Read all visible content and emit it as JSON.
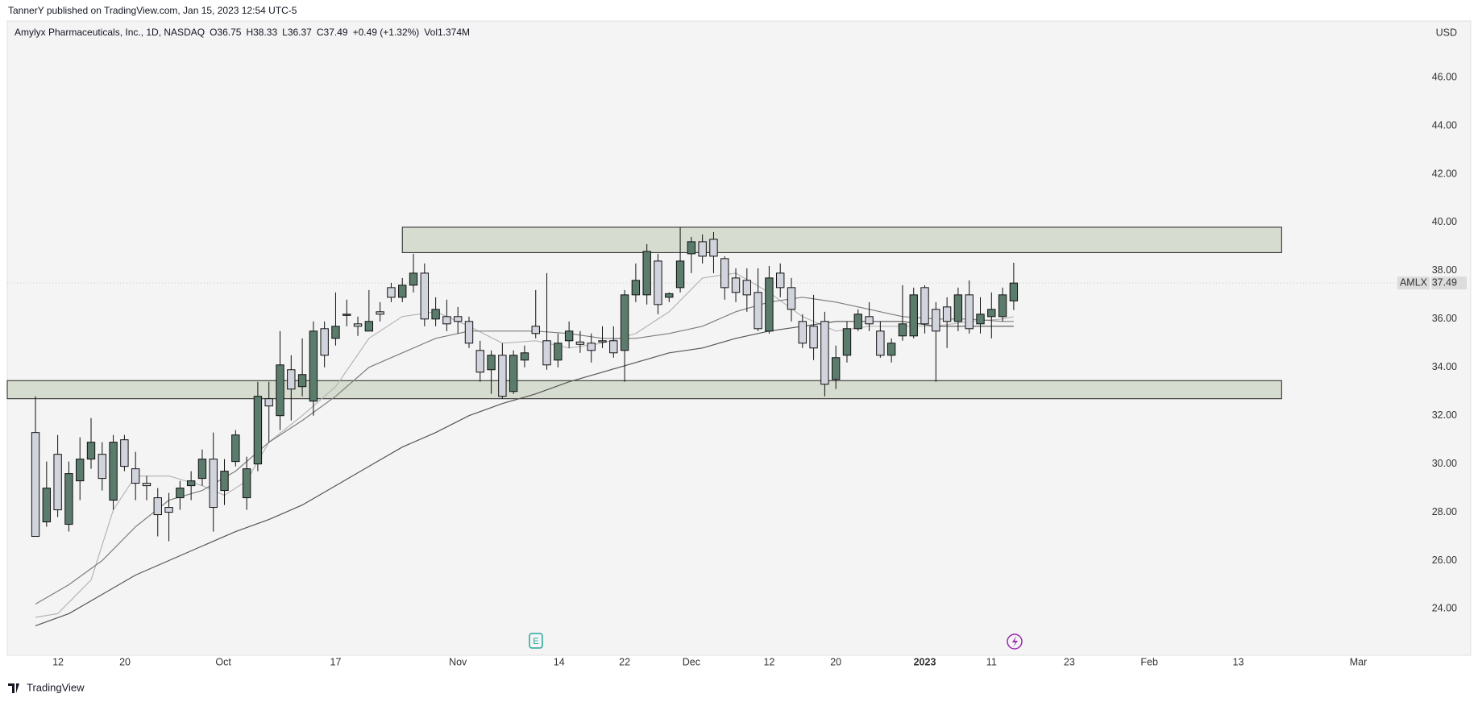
{
  "chart_data": {
    "type": "candlestick",
    "published": "TannerY published on TradingView.com, Jan 15, 2023 12:54 UTC-5",
    "symbol": "Amylyx Pharmaceuticals, Inc., 1D, NASDAQ",
    "ohlc_labels": [
      "O36.75",
      "H38.33",
      "L36.37",
      "C37.49"
    ],
    "change": "+0.49 (+1.32%)",
    "volume": "Vol1.374M",
    "currency": "USD",
    "brand": "TradingView",
    "up_color": "#5b7b6c",
    "down_color": "#d1d4dc",
    "open": [
      31.3,
      27.6,
      30.4,
      27.5,
      29.3,
      30.2,
      30.4,
      28.5,
      31.0,
      29.8,
      29.2,
      28.6,
      28.2,
      28.6,
      29.1,
      29.4,
      30.2,
      28.9,
      30.1,
      28.6,
      30.0,
      32.7,
      32.0,
      33.9,
      33.2,
      32.6,
      35.6,
      35.2,
      36.15,
      35.8,
      35.5,
      36.3,
      37.3,
      36.9,
      37.4,
      37.9,
      36.0,
      36.1,
      36.1,
      35.9,
      34.7,
      33.9,
      34.5,
      33.0,
      34.3,
      35.7,
      35.1,
      34.3,
      35.1,
      35.05,
      35.0,
      35.1,
      35.1,
      34.7,
      37.0,
      37.0,
      38.4,
      36.9,
      37.3,
      38.7,
      39.2,
      39.3,
      38.5,
      37.7,
      37.6,
      37.1,
      35.5,
      37.9,
      37.3,
      35.9,
      35.7,
      35.9,
      33.5,
      34.5,
      35.6,
      36.1,
      35.5,
      34.5,
      35.3,
      35.3,
      37.3,
      36.4,
      36.5,
      35.9,
      37.0,
      35.8,
      36.1,
      36.1,
      36.75
    ],
    "high": [
      32.8,
      30.1,
      31.2,
      30.1,
      31.1,
      31.9,
      30.9,
      31.2,
      31.2,
      30.5,
      29.5,
      29.0,
      28.8,
      29.3,
      29.7,
      30.6,
      31.3,
      30.2,
      31.4,
      30.3,
      33.4,
      33.4,
      35.5,
      34.5,
      35.2,
      35.9,
      35.9,
      37.1,
      36.8,
      36.1,
      37.2,
      36.7,
      37.5,
      37.7,
      38.7,
      38.3,
      36.9,
      36.8,
      36.5,
      36.1,
      35.1,
      34.7,
      35.0,
      34.7,
      34.9,
      37.2,
      37.9,
      35.4,
      35.9,
      35.5,
      35.4,
      35.7,
      35.7,
      37.2,
      38.3,
      39.1,
      38.7,
      37.1,
      39.8,
      39.4,
      39.5,
      39.6,
      38.6,
      38.1,
      38.1,
      38.1,
      38.2,
      38.3,
      37.7,
      36.2,
      37.0,
      36.3,
      34.9,
      35.9,
      36.4,
      36.7,
      35.9,
      35.2,
      37.4,
      37.3,
      37.4,
      36.7,
      36.9,
      37.3,
      37.6,
      36.9,
      37.1,
      37.3,
      38.33
    ],
    "low": [
      27.0,
      27.4,
      27.8,
      27.2,
      28.5,
      29.8,
      28.9,
      28.1,
      29.7,
      28.5,
      28.5,
      27.0,
      26.8,
      28.1,
      28.5,
      29.1,
      27.2,
      28.3,
      29.9,
      28.1,
      29.7,
      30.9,
      31.4,
      31.8,
      32.8,
      32.0,
      34.0,
      34.9,
      35.7,
      35.3,
      35.5,
      35.9,
      36.7,
      36.7,
      37.1,
      35.7,
      35.7,
      35.5,
      35.4,
      34.8,
      33.4,
      32.9,
      32.7,
      32.9,
      34.0,
      35.2,
      33.9,
      34.0,
      34.8,
      34.6,
      34.2,
      34.8,
      34.4,
      33.4,
      36.7,
      36.6,
      36.2,
      36.7,
      37.1,
      37.9,
      38.3,
      37.9,
      36.8,
      36.7,
      36.3,
      35.5,
      35.4,
      36.9,
      35.9,
      34.8,
      34.3,
      32.8,
      33.1,
      34.2,
      35.5,
      35.5,
      34.4,
      34.2,
      35.1,
      35.2,
      35.4,
      33.4,
      34.8,
      35.5,
      35.4,
      35.4,
      35.2,
      35.9,
      36.37
    ],
    "close": [
      27.0,
      29.0,
      28.1,
      29.6,
      30.2,
      30.9,
      29.4,
      30.9,
      29.9,
      29.2,
      29.1,
      27.9,
      28.0,
      29.0,
      29.3,
      30.2,
      28.2,
      29.7,
      31.2,
      29.8,
      32.8,
      32.4,
      34.1,
      33.1,
      33.7,
      35.5,
      34.5,
      35.7,
      36.2,
      35.7,
      35.9,
      36.2,
      36.9,
      37.4,
      37.9,
      36.0,
      36.4,
      35.8,
      35.9,
      35.0,
      33.8,
      34.5,
      32.8,
      34.5,
      34.6,
      35.4,
      34.1,
      35.0,
      35.5,
      34.95,
      34.7,
      35.05,
      34.6,
      37.0,
      37.6,
      38.8,
      36.6,
      37.05,
      38.4,
      39.2,
      38.6,
      38.6,
      37.3,
      37.1,
      37.0,
      35.6,
      37.7,
      37.3,
      36.4,
      35.0,
      34.8,
      33.3,
      34.4,
      35.6,
      36.2,
      35.8,
      34.5,
      35.0,
      35.8,
      37.0,
      35.8,
      35.5,
      35.9,
      37.0,
      35.6,
      36.2,
      36.4,
      37.0,
      37.49
    ],
    "series": [
      {
        "color": "#b5b5b5",
        "x": [
          0,
          2,
          5,
          7,
          9,
          12,
          15,
          17,
          19,
          21,
          24,
          27,
          30,
          33,
          36,
          39,
          42,
          45,
          48,
          51,
          54,
          57,
          60,
          63,
          66,
          69,
          72,
          75,
          78,
          81,
          84,
          87,
          88
        ],
        "values": [
          23.65,
          23.8,
          25.2,
          28.1,
          29.5,
          29.5,
          29.1,
          28.7,
          29.3,
          30.9,
          32.0,
          33.2,
          35.2,
          36.1,
          36.3,
          35.7,
          35.0,
          35.1,
          34.8,
          35.0,
          35.4,
          36.3,
          37.7,
          37.9,
          37.1,
          36.1,
          35.5,
          35.7,
          35.7,
          35.7,
          35.9,
          36.0,
          36.1
        ]
      },
      {
        "color": "#7d7d7d",
        "x": [
          0,
          3,
          6,
          9,
          12,
          15,
          18,
          21,
          24,
          27,
          30,
          33,
          36,
          39,
          42,
          45,
          48,
          51,
          54,
          57,
          60,
          63,
          66,
          69,
          72,
          75,
          78,
          81,
          84,
          87,
          88
        ],
        "values": [
          24.2,
          25.0,
          26.0,
          27.4,
          28.5,
          28.9,
          29.7,
          30.9,
          31.8,
          32.8,
          34.0,
          34.6,
          35.2,
          35.5,
          35.5,
          35.5,
          35.4,
          35.2,
          35.2,
          35.4,
          35.7,
          36.3,
          36.7,
          36.9,
          36.7,
          36.4,
          36.1,
          36.0,
          36.0,
          35.9,
          35.9
        ]
      },
      {
        "color": "#555555",
        "x": [
          0,
          3,
          6,
          9,
          12,
          15,
          18,
          21,
          24,
          27,
          30,
          33,
          36,
          39,
          42,
          45,
          48,
          51,
          54,
          57,
          60,
          63,
          66,
          69,
          72,
          75,
          78,
          81,
          84,
          87,
          88
        ],
        "values": [
          23.3,
          23.8,
          24.6,
          25.4,
          26.0,
          26.6,
          27.2,
          27.7,
          28.3,
          29.1,
          29.9,
          30.7,
          31.3,
          32.0,
          32.5,
          32.9,
          33.4,
          33.8,
          34.2,
          34.6,
          34.8,
          35.2,
          35.5,
          35.7,
          35.9,
          35.9,
          35.9,
          35.7,
          35.7,
          35.7,
          35.7
        ]
      }
    ],
    "zones": [
      {
        "x0": 33.0,
        "x1": 112.1,
        "y0": 38.75,
        "y1": 39.8
      },
      {
        "x0": -2.54,
        "x1": 112.1,
        "y0": 32.7,
        "y1": 33.45
      }
    ],
    "price_tag": {
      "symbol": "AMLX",
      "value": 37.49,
      "label": "37.49"
    },
    "xlim": [
      -2.54,
      122.3
    ],
    "ylim": [
      22.28,
      48.34
    ],
    "yticks": [
      {
        "value": 24,
        "label": "24.00"
      },
      {
        "value": 26,
        "label": "26.00"
      },
      {
        "value": 28,
        "label": "28.00"
      },
      {
        "value": 30,
        "label": "30.00"
      },
      {
        "value": 32,
        "label": "32.00"
      },
      {
        "value": 34,
        "label": "34.00"
      },
      {
        "value": 36,
        "label": "36.00"
      },
      {
        "value": 38,
        "label": "38.00"
      },
      {
        "value": 40,
        "label": "40.00"
      },
      {
        "value": 42,
        "label": "42.00"
      },
      {
        "value": 44,
        "label": "44.00"
      },
      {
        "value": 46,
        "label": "46.00"
      }
    ],
    "xticks": [
      {
        "value": 2.03,
        "label": "12"
      },
      {
        "value": 8.05,
        "label": "20"
      },
      {
        "value": 16.9,
        "label": "Oct"
      },
      {
        "value": 27.0,
        "label": "17"
      },
      {
        "value": 38.0,
        "label": "Nov"
      },
      {
        "value": 47.1,
        "label": "14"
      },
      {
        "value": 53.0,
        "label": "22"
      },
      {
        "value": 59.0,
        "label": "Dec"
      },
      {
        "value": 66.0,
        "label": "12"
      },
      {
        "value": 72.0,
        "label": "20"
      },
      {
        "value": 80.0,
        "label": "2023"
      },
      {
        "value": 86.0,
        "label": "11"
      },
      {
        "value": 93.0,
        "label": "23"
      },
      {
        "value": 100.2,
        "label": "Feb"
      },
      {
        "value": 108.2,
        "label": "13"
      },
      {
        "value": 119.0,
        "label": "Mar"
      }
    ]
  }
}
